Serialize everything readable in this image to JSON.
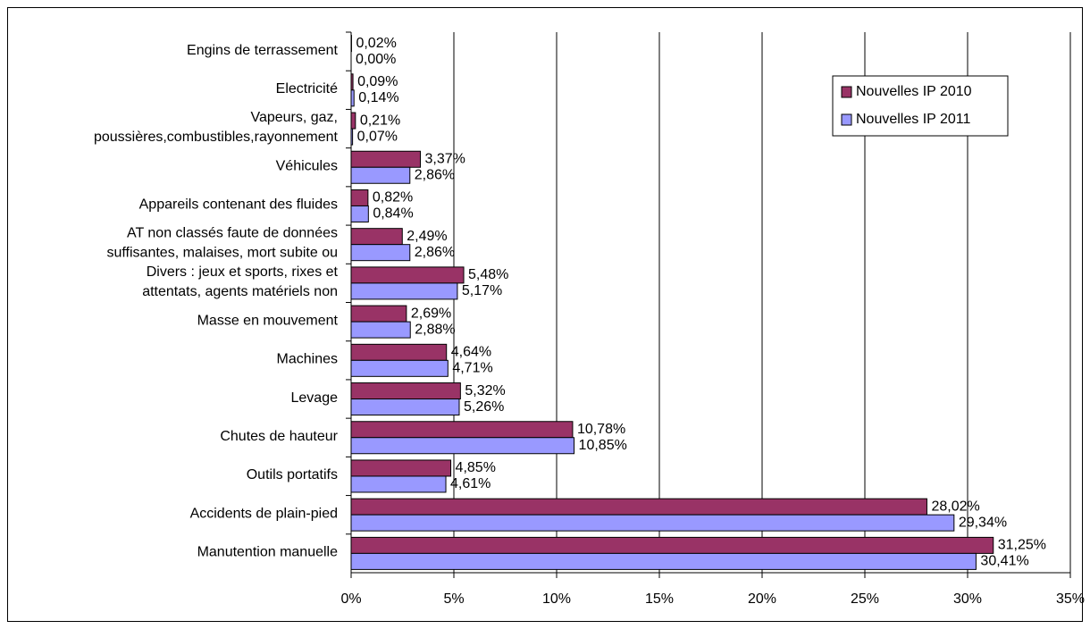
{
  "chart_data": {
    "type": "hbar",
    "categories": [
      "Engins de terrassement",
      "Electricité",
      "Vapeurs, gaz,\npoussières,combustibles,rayonnement",
      "Véhicules",
      "Appareils contenant des fluides",
      "AT non classés faute de données\nsuffisantes, malaises, mort subite ou",
      "Divers : jeux et sports, rixes et\nattentats, agents matériels non",
      "Masse en mouvement",
      "Machines",
      "Levage",
      "Chutes de hauteur",
      "Outils portatifs",
      "Accidents de plain-pied",
      "Manutention manuelle"
    ],
    "series": [
      {
        "name": "Nouvelles IP 2010",
        "color": "#993366",
        "values": [
          0.02,
          0.09,
          0.21,
          3.37,
          0.82,
          2.49,
          5.48,
          2.69,
          4.64,
          5.32,
          10.78,
          4.85,
          28.02,
          31.25
        ],
        "value_labels": [
          "0,02%",
          "0,09%",
          "0,21%",
          "3,37%",
          "0,82%",
          "2,49%",
          "5,48%",
          "2,69%",
          "4,64%",
          "5,32%",
          "10,78%",
          "4,85%",
          "28,02%",
          "31,25%"
        ]
      },
      {
        "name": "Nouvelles IP 2011",
        "color": "#9999ff",
        "values": [
          0.0,
          0.14,
          0.07,
          2.86,
          0.84,
          2.86,
          5.17,
          2.88,
          4.71,
          5.26,
          10.85,
          4.61,
          29.34,
          30.41
        ],
        "value_labels": [
          "0,00%",
          "0,14%",
          "0,07%",
          "2,86%",
          "0,84%",
          "2,86%",
          "5,17%",
          "2,88%",
          "4,71%",
          "5,26%",
          "10,85%",
          "4,61%",
          "29,34%",
          "30,41%"
        ]
      }
    ],
    "xlim": [
      0,
      35
    ],
    "xticks": [
      {
        "value": 0,
        "label": "0%"
      },
      {
        "value": 5,
        "label": "5%"
      },
      {
        "value": 10,
        "label": "10%"
      },
      {
        "value": 15,
        "label": "15%"
      },
      {
        "value": 20,
        "label": "20%"
      },
      {
        "value": 25,
        "label": "25%"
      },
      {
        "value": 30,
        "label": "30%"
      },
      {
        "value": 35,
        "label": "35%"
      }
    ],
    "grid": true,
    "legend": "upper right"
  }
}
